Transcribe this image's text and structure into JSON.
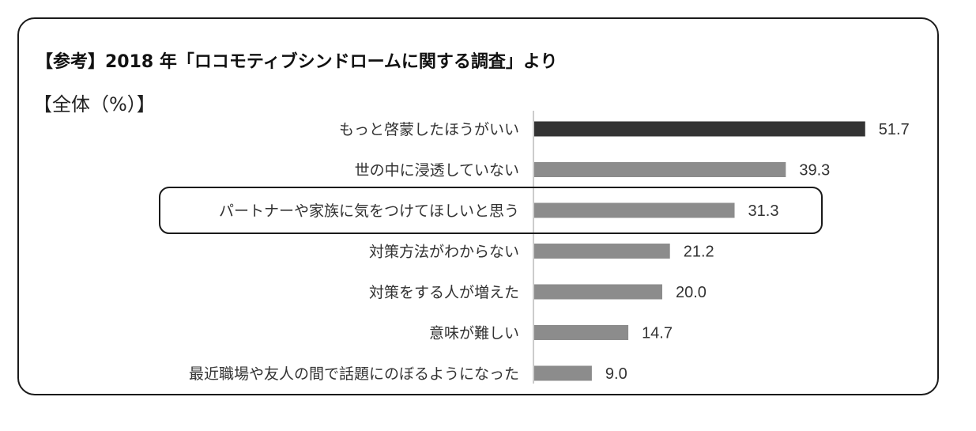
{
  "header": {
    "title": "【参考】2018 年「ロコモティブシンドロームに関する調査」より",
    "subtitle": "【全体（%）】"
  },
  "chart_data": {
    "type": "bar",
    "orientation": "horizontal",
    "categories": [
      "もっと啓蒙したほうがいい",
      "世の中に浸透していない",
      "パートナーや家族に気をつけてほしいと思う",
      "対策方法がわからない",
      "対策をする人が増えた",
      "意味が難しい",
      "最近職場や友人の間で話題にのぼるようになった"
    ],
    "values": [
      51.7,
      39.3,
      31.3,
      21.2,
      20.0,
      14.7,
      9.0
    ],
    "value_labels": [
      "51.7",
      "39.3",
      "31.3",
      "21.2",
      "20.0",
      "14.7",
      "9.0"
    ],
    "highlight_index": 2,
    "colors": {
      "top_bar": "#333333",
      "bar": "#8c8c8c",
      "axis": "#cccccc",
      "highlight_border": "#1a1a1a"
    }
  }
}
